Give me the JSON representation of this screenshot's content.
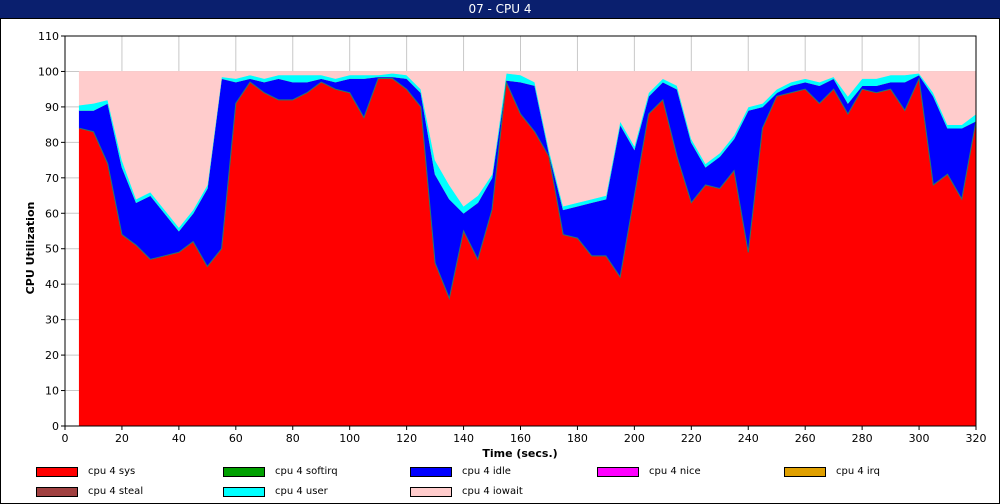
{
  "window": {
    "title": "07 - CPU 4"
  },
  "chart_data": {
    "type": "area",
    "title": "07 - CPU 4",
    "xlabel": "Time (secs.)",
    "ylabel": "CPU Utilization",
    "xlim": [
      0,
      320
    ],
    "ylim": [
      0,
      110
    ],
    "xticks": [
      0,
      20,
      40,
      60,
      80,
      100,
      120,
      140,
      160,
      180,
      200,
      220,
      240,
      260,
      280,
      300,
      320
    ],
    "yticks": [
      0,
      10,
      20,
      30,
      40,
      50,
      60,
      70,
      80,
      90,
      100,
      110
    ],
    "grid": true,
    "legend_position": "bottom",
    "x": [
      5,
      10,
      15,
      20,
      25,
      30,
      35,
      40,
      45,
      50,
      55,
      60,
      65,
      70,
      75,
      80,
      85,
      90,
      95,
      100,
      105,
      110,
      115,
      120,
      125,
      130,
      135,
      140,
      145,
      150,
      155,
      160,
      165,
      170,
      175,
      180,
      185,
      190,
      195,
      200,
      205,
      210,
      215,
      220,
      225,
      230,
      235,
      240,
      245,
      250,
      255,
      260,
      265,
      270,
      275,
      280,
      285,
      290,
      295,
      300,
      305,
      310,
      315,
      320
    ],
    "series": [
      {
        "name": "cpu 4 sys",
        "color": "#ff0000",
        "values": [
          84,
          83,
          74,
          54,
          51,
          47,
          48,
          49,
          52,
          45,
          50,
          91,
          97,
          94,
          92,
          92,
          94,
          97,
          95,
          94,
          87,
          98,
          98,
          95,
          90,
          46,
          36,
          55,
          47,
          61,
          97,
          88,
          83,
          76,
          54,
          53,
          48,
          48,
          42,
          65,
          88,
          92,
          76,
          63,
          68,
          67,
          72,
          49,
          84,
          93,
          94,
          95,
          91,
          95,
          88,
          95,
          94,
          95,
          89,
          98,
          68,
          71,
          64,
          86
        ]
      },
      {
        "name": "cpu 4 softirq",
        "color": "#00a000",
        "values": [
          0,
          0,
          0,
          0,
          0,
          0,
          0,
          0,
          0,
          0,
          0,
          0,
          0,
          0,
          0,
          0,
          0,
          0,
          0,
          0,
          0,
          0,
          0,
          0,
          0,
          0,
          0,
          0,
          0,
          0,
          0,
          0,
          0,
          0,
          0,
          0,
          0,
          0,
          0,
          0,
          0,
          0,
          0,
          0,
          0,
          0,
          0,
          0,
          0,
          0,
          0,
          0,
          0,
          0,
          0,
          0,
          0,
          0,
          0,
          0,
          0,
          0,
          0,
          0
        ]
      },
      {
        "name": "cpu 4 idle",
        "color": "#0000ff",
        "values": [
          5,
          6,
          17,
          19,
          12,
          18,
          12,
          6,
          8,
          22,
          48,
          6,
          1,
          3,
          6,
          5,
          3,
          1,
          2,
          4,
          11,
          0.5,
          0.5,
          3,
          4,
          25,
          28,
          5,
          16,
          9,
          0.5,
          9,
          13,
          1,
          7,
          9,
          15,
          16,
          43,
          13,
          5,
          5,
          19,
          17,
          5,
          9,
          9,
          40,
          6,
          1,
          2,
          2,
          5,
          3,
          3,
          1,
          2,
          2,
          8,
          1,
          25,
          13,
          20,
          0
        ]
      },
      {
        "name": "cpu 4 nice",
        "color": "#ff00ff",
        "values": [
          0,
          0,
          0,
          0,
          0,
          0,
          0,
          0,
          0,
          0,
          0,
          0,
          0,
          0,
          0,
          0,
          0,
          0,
          0,
          0,
          0,
          0,
          0,
          0,
          0,
          0,
          0,
          0,
          0,
          0,
          0,
          0,
          0,
          0,
          0,
          0,
          0,
          0,
          0,
          0,
          0,
          0,
          0,
          0,
          0,
          0,
          0,
          0,
          0,
          0,
          0,
          0,
          0,
          0,
          0,
          0,
          0,
          0,
          0,
          0,
          0,
          0,
          0,
          0
        ]
      },
      {
        "name": "cpu 4 irq",
        "color": "#e0a000",
        "values": [
          0,
          0,
          0,
          0,
          0,
          0,
          0,
          0,
          0,
          0,
          0,
          0,
          0,
          0,
          0,
          0,
          0,
          0,
          0,
          0,
          0,
          0,
          0,
          0,
          0,
          0,
          0,
          0,
          0,
          0,
          0,
          0,
          0,
          0,
          0,
          0,
          0,
          0,
          0,
          0,
          0,
          0,
          0,
          0,
          0,
          0,
          0,
          0,
          0,
          0,
          0,
          0,
          0,
          0,
          0,
          0,
          0,
          0,
          0,
          0,
          0,
          0,
          0,
          0
        ]
      },
      {
        "name": "cpu 4 steal",
        "color": "#a04040",
        "values": [
          0,
          0,
          0,
          0,
          0,
          0,
          0,
          0,
          0,
          0,
          0,
          0,
          0,
          0,
          0,
          0,
          0,
          0,
          0,
          0,
          0,
          0,
          0,
          0,
          0,
          0,
          0,
          0,
          0,
          0,
          0,
          0,
          0,
          0,
          0,
          0,
          0,
          0,
          0,
          0,
          0,
          0,
          0,
          0,
          0,
          0,
          0,
          0,
          0,
          0,
          0,
          0,
          0,
          0,
          0,
          0,
          0,
          0,
          0,
          0,
          0,
          0,
          0,
          0
        ]
      },
      {
        "name": "cpu 4 user",
        "color": "#00ffff",
        "values": [
          1.5,
          2,
          1,
          2,
          1,
          1,
          1,
          1,
          1,
          1,
          0.5,
          1,
          1,
          1,
          1,
          2,
          2,
          1,
          1,
          1,
          1,
          0.5,
          1,
          1,
          1,
          4,
          4,
          2,
          2,
          1,
          2,
          2,
          1,
          1,
          1,
          1,
          1,
          1,
          1,
          1,
          1,
          1,
          1,
          1,
          1,
          1,
          1,
          1,
          1,
          1,
          1,
          1,
          1,
          0.5,
          2,
          2,
          2,
          2,
          2,
          0.5,
          1,
          1,
          1,
          2
        ]
      },
      {
        "name": "cpu 4 iowait",
        "color": "#ffcccc",
        "values": [
          9.5,
          9,
          8,
          25,
          36,
          34,
          39,
          44,
          39,
          32,
          1.5,
          2,
          1,
          2,
          1,
          1,
          1,
          1,
          2,
          1,
          1,
          1,
          0.5,
          1,
          5,
          25,
          32,
          38,
          35,
          29,
          0.5,
          1,
          3,
          22,
          38,
          37,
          36,
          35,
          14,
          21,
          6,
          2,
          4,
          19,
          26,
          23,
          18,
          10,
          9,
          5,
          3,
          2,
          3,
          1.5,
          7,
          2,
          2,
          1,
          1,
          0.5,
          6,
          15,
          15,
          12
        ]
      }
    ]
  },
  "legend": {
    "items": [
      {
        "label": "cpu 4 sys",
        "color": "#ff0000"
      },
      {
        "label": "cpu 4 softirq",
        "color": "#00a000"
      },
      {
        "label": "cpu 4 idle",
        "color": "#0000ff"
      },
      {
        "label": "cpu 4 nice",
        "color": "#ff00ff"
      },
      {
        "label": "cpu 4 irq",
        "color": "#e0a000"
      },
      {
        "label": "cpu 4 steal",
        "color": "#a04040"
      },
      {
        "label": "cpu 4 user",
        "color": "#00ffff"
      },
      {
        "label": "cpu 4 iowait",
        "color": "#ffcccc"
      }
    ]
  }
}
